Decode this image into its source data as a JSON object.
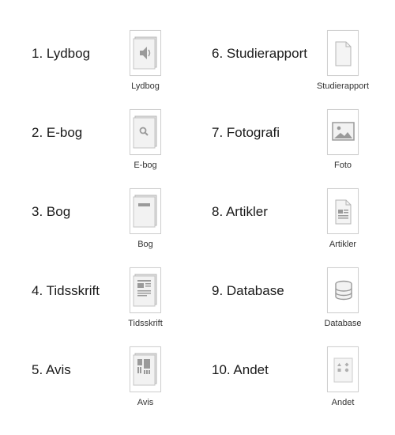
{
  "items": [
    {
      "label": "1. Lydbog",
      "caption": "Lydbog",
      "icon": "audiobook-icon"
    },
    {
      "label": "2. E-bog",
      "caption": "E-bog",
      "icon": "ebook-icon"
    },
    {
      "label": "3. Bog",
      "caption": "Bog",
      "icon": "book-icon"
    },
    {
      "label": "4. Tidsskrift",
      "caption": "Tidsskrift",
      "icon": "journal-icon"
    },
    {
      "label": "5. Avis",
      "caption": "Avis",
      "icon": "newspaper-icon"
    },
    {
      "label": "6. Studierapport",
      "caption": "Studierapport",
      "icon": "report-icon"
    },
    {
      "label": "7. Fotografi",
      "caption": "Foto",
      "icon": "photo-icon"
    },
    {
      "label": "8. Artikler",
      "caption": "Artikler",
      "icon": "article-icon"
    },
    {
      "label": "9. Database",
      "caption": "Database",
      "icon": "database-icon"
    },
    {
      "label": "10. Andet",
      "caption": "Andet",
      "icon": "other-icon"
    }
  ],
  "colors": {
    "icon_gray": "#9a9a9a",
    "icon_light": "#e6e6e6",
    "border": "#cfcfcf"
  }
}
